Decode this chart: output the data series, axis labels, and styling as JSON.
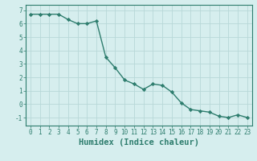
{
  "x": [
    0,
    1,
    2,
    3,
    4,
    5,
    6,
    7,
    8,
    9,
    10,
    11,
    12,
    13,
    14,
    15,
    16,
    17,
    18,
    19,
    20,
    21,
    22,
    23
  ],
  "y": [
    6.7,
    6.7,
    6.7,
    6.7,
    6.3,
    6.0,
    6.0,
    6.2,
    3.5,
    2.7,
    1.8,
    1.5,
    1.1,
    1.5,
    1.4,
    0.9,
    0.1,
    -0.4,
    -0.5,
    -0.6,
    -0.9,
    -1.0,
    -0.8,
    -1.0
  ],
  "line_color": "#2e7d6e",
  "marker": "D",
  "marker_size": 2.2,
  "bg_color": "#d6eeee",
  "grid_color": "#b8d8d8",
  "xlabel": "Humidex (Indice chaleur)",
  "xlim": [
    -0.5,
    23.5
  ],
  "ylim": [
    -1.6,
    7.4
  ],
  "xticks": [
    0,
    1,
    2,
    3,
    4,
    5,
    6,
    7,
    8,
    9,
    10,
    11,
    12,
    13,
    14,
    15,
    16,
    17,
    18,
    19,
    20,
    21,
    22,
    23
  ],
  "yticks": [
    -1,
    0,
    1,
    2,
    3,
    4,
    5,
    6,
    7
  ],
  "tick_fontsize": 5.5,
  "xlabel_fontsize": 7.5,
  "line_width": 1.0,
  "teal_color": "#2e7d6e"
}
